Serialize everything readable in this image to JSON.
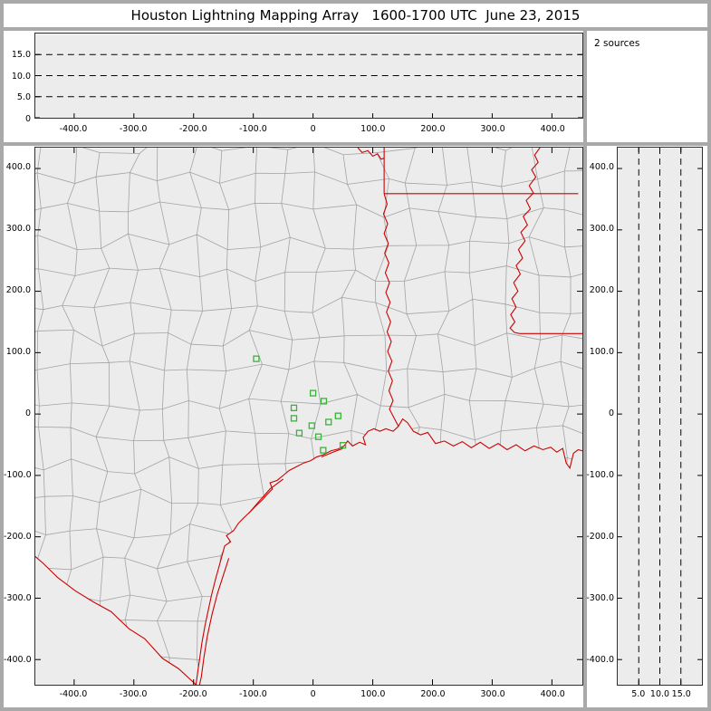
{
  "title": "Houston Lightning Mapping Array   1600-1700 UTC  June 23, 2015",
  "colors": {
    "background": "#ffffff",
    "frame": "#a9a9a9",
    "panel_bg": "#ececec",
    "county_line": "#a3a3a3",
    "state_line": "#cc0000",
    "station": "#35b535",
    "axis": "#000000"
  },
  "chart_data": [
    {
      "id": "altitude_vs_eastwest",
      "type": "scatter",
      "description": "Altitude (km) vs east-west distance (km); dashed altitude gridlines; no visible source points",
      "xlim": [
        -465,
        451
      ],
      "ylim": [
        0,
        20
      ],
      "x_ticks": [
        -400,
        -300,
        -200,
        -100,
        0,
        100,
        200,
        300,
        400
      ],
      "x_tick_labels": [
        "-400.0",
        "-300.0",
        "-200.0",
        "-100.0",
        "0",
        "100.0",
        "200.0",
        "300.0",
        "400.0"
      ],
      "y_ticks": [
        0,
        5,
        10,
        15
      ],
      "y_tick_labels": [
        "0",
        "5.0",
        "10.0",
        "15.0"
      ],
      "dashed_gridlines_y": [
        5,
        10,
        15
      ],
      "points": []
    },
    {
      "id": "source_count",
      "type": "text",
      "label": "2 sources"
    },
    {
      "id": "plan_view_map",
      "type": "scatter",
      "description": "Plan view map centered on Houston; gray county boundaries, red state/coast borders, green open squares are LMA stations (km east/north)",
      "xlim": [
        -465,
        451
      ],
      "ylim": [
        -441,
        434
      ],
      "x_ticks": [
        -400,
        -300,
        -200,
        -100,
        0,
        100,
        200,
        300,
        400
      ],
      "x_tick_labels": [
        "-400.0",
        "-300.0",
        "-200.0",
        "-100.0",
        "0",
        "100.0",
        "200.0",
        "300.0",
        "400.0"
      ],
      "y_ticks": [
        400,
        300,
        200,
        100,
        0,
        -100,
        -200,
        -300,
        -400
      ],
      "y_tick_labels": [
        "400.0",
        "300.0",
        "200.0",
        "100.0",
        "0",
        "-100.0",
        "-200.0",
        "-300.0",
        "-400.0"
      ],
      "stations_km": [
        [
          -95,
          90
        ],
        [
          -32,
          10
        ],
        [
          0,
          34
        ],
        [
          18,
          21
        ],
        [
          -32,
          -7
        ],
        [
          -23,
          -31
        ],
        [
          -2,
          -19
        ],
        [
          9,
          -37
        ],
        [
          26,
          -13
        ],
        [
          42,
          -3
        ],
        [
          17,
          -59
        ],
        [
          50,
          -51
        ]
      ],
      "borders_km": {
        "coastline": [
          [
            -196,
            -441
          ],
          [
            -193,
            -420
          ],
          [
            -190,
            -400
          ],
          [
            -186,
            -372
          ],
          [
            -181,
            -345
          ],
          [
            -176,
            -322
          ],
          [
            -170,
            -295
          ],
          [
            -163,
            -268
          ],
          [
            -155,
            -240
          ],
          [
            -148,
            -215
          ],
          [
            -138,
            -208
          ],
          [
            -145,
            -198
          ],
          [
            -133,
            -190
          ],
          [
            -125,
            -178
          ],
          [
            -115,
            -168
          ],
          [
            -104,
            -158
          ],
          [
            -96,
            -150
          ],
          [
            -85,
            -140
          ],
          [
            -78,
            -132
          ],
          [
            -68,
            -122
          ],
          [
            -72,
            -112
          ],
          [
            -60,
            -108
          ],
          [
            -50,
            -100
          ],
          [
            -40,
            -92
          ],
          [
            -28,
            -86
          ],
          [
            -16,
            -80
          ],
          [
            -4,
            -76
          ],
          [
            6,
            -70
          ],
          [
            18,
            -66
          ],
          [
            30,
            -60
          ],
          [
            42,
            -57
          ],
          [
            52,
            -52
          ],
          [
            58,
            -44
          ],
          [
            66,
            -52
          ],
          [
            78,
            -46
          ],
          [
            88,
            -50
          ],
          [
            84,
            -38
          ],
          [
            92,
            -28
          ],
          [
            102,
            -24
          ],
          [
            112,
            -28
          ],
          [
            122,
            -24
          ],
          [
            134,
            -28
          ],
          [
            143,
            -20
          ],
          [
            150,
            -8
          ],
          [
            158,
            -14
          ],
          [
            168,
            -28
          ],
          [
            180,
            -34
          ],
          [
            192,
            -30
          ],
          [
            205,
            -48
          ],
          [
            220,
            -44
          ],
          [
            235,
            -52
          ],
          [
            250,
            -45
          ],
          [
            265,
            -55
          ],
          [
            280,
            -46
          ],
          [
            295,
            -56
          ],
          [
            310,
            -48
          ],
          [
            325,
            -58
          ],
          [
            340,
            -50
          ],
          [
            355,
            -60
          ],
          [
            370,
            -52
          ],
          [
            385,
            -58
          ],
          [
            398,
            -54
          ],
          [
            408,
            -62
          ],
          [
            418,
            -56
          ],
          [
            424,
            -80
          ],
          [
            430,
            -88
          ],
          [
            436,
            -64
          ],
          [
            444,
            -58
          ],
          [
            451,
            -60
          ]
        ],
        "rio_grande": [
          [
            -196,
            -441
          ],
          [
            -225,
            -415
          ],
          [
            -252,
            -398
          ],
          [
            -282,
            -366
          ],
          [
            -308,
            -350
          ],
          [
            -338,
            -322
          ],
          [
            -368,
            -306
          ],
          [
            -398,
            -288
          ],
          [
            -428,
            -266
          ],
          [
            -452,
            -243
          ],
          [
            -470,
            -228
          ]
        ],
        "red_river": [
          [
            75,
            434
          ],
          [
            82,
            426
          ],
          [
            92,
            429
          ],
          [
            100,
            420
          ],
          [
            108,
            424
          ],
          [
            114,
            415
          ],
          [
            119,
            417
          ]
        ],
        "tx_ar": [
          [
            119,
            434
          ],
          [
            119,
            359
          ]
        ],
        "ar_la": [
          [
            119,
            359
          ],
          [
            444,
            359
          ]
        ],
        "tx_la_sabine": [
          [
            119,
            359
          ],
          [
            124,
            342
          ],
          [
            118,
            326
          ],
          [
            125,
            310
          ],
          [
            119,
            294
          ],
          [
            126,
            278
          ],
          [
            120,
            262
          ],
          [
            127,
            246
          ],
          [
            121,
            230
          ],
          [
            128,
            214
          ],
          [
            122,
            198
          ],
          [
            129,
            182
          ],
          [
            123,
            166
          ],
          [
            130,
            150
          ],
          [
            124,
            134
          ],
          [
            131,
            118
          ],
          [
            125,
            102
          ],
          [
            132,
            86
          ],
          [
            126,
            70
          ],
          [
            133,
            54
          ],
          [
            127,
            38
          ],
          [
            134,
            22
          ],
          [
            128,
            8
          ],
          [
            143,
            -20
          ]
        ],
        "la_ms_river": [
          [
            380,
            434
          ],
          [
            371,
            422
          ],
          [
            377,
            410
          ],
          [
            366,
            398
          ],
          [
            373,
            386
          ],
          [
            362,
            372
          ],
          [
            369,
            360
          ],
          [
            357,
            348
          ],
          [
            364,
            334
          ],
          [
            352,
            322
          ],
          [
            359,
            308
          ],
          [
            348,
            296
          ],
          [
            355,
            282
          ],
          [
            344,
            268
          ],
          [
            351,
            254
          ],
          [
            340,
            242
          ],
          [
            347,
            228
          ],
          [
            336,
            214
          ],
          [
            343,
            200
          ],
          [
            333,
            188
          ],
          [
            340,
            174
          ],
          [
            331,
            162
          ],
          [
            338,
            150
          ],
          [
            330,
            140
          ],
          [
            337,
            133
          ],
          [
            346,
            131
          ]
        ],
        "la_ms_31": [
          [
            346,
            131
          ],
          [
            451,
            131
          ]
        ],
        "islands": [
          [
            [
              -141,
              -235
            ],
            [
              -150,
              -262
            ],
            [
              -160,
              -292
            ],
            [
              -169,
              -326
            ],
            [
              -177,
              -362
            ],
            [
              -183,
              -398
            ],
            [
              -187,
              -428
            ],
            [
              -190,
              -441
            ]
          ],
          [
            [
              -50,
              -106
            ],
            [
              -72,
              -122
            ],
            [
              -92,
              -144
            ],
            [
              -108,
              -162
            ]
          ],
          [
            [
              14,
              -70
            ],
            [
              34,
              -62
            ],
            [
              50,
              -56
            ]
          ]
        ]
      }
    },
    {
      "id": "altitude_vs_northsouth",
      "type": "scatter",
      "description": "North-south distance (km) vs altitude (km); dashed altitude gridlines; no visible source points",
      "xlim": [
        0,
        20
      ],
      "ylim": [
        -441,
        434
      ],
      "x_ticks": [
        5,
        10,
        15
      ],
      "x_tick_labels": [
        "5.0",
        "10.0",
        "15.0"
      ],
      "y_ticks": [
        400,
        300,
        200,
        100,
        0,
        -100,
        -200,
        -300,
        -400
      ],
      "y_tick_labels": [
        "400.0",
        "300.0",
        "200.0",
        "100.0",
        "0",
        "-100.0",
        "-200.0",
        "-300.0",
        "-400.0"
      ],
      "dashed_gridlines_x": [
        5,
        10,
        15
      ],
      "points": []
    }
  ]
}
